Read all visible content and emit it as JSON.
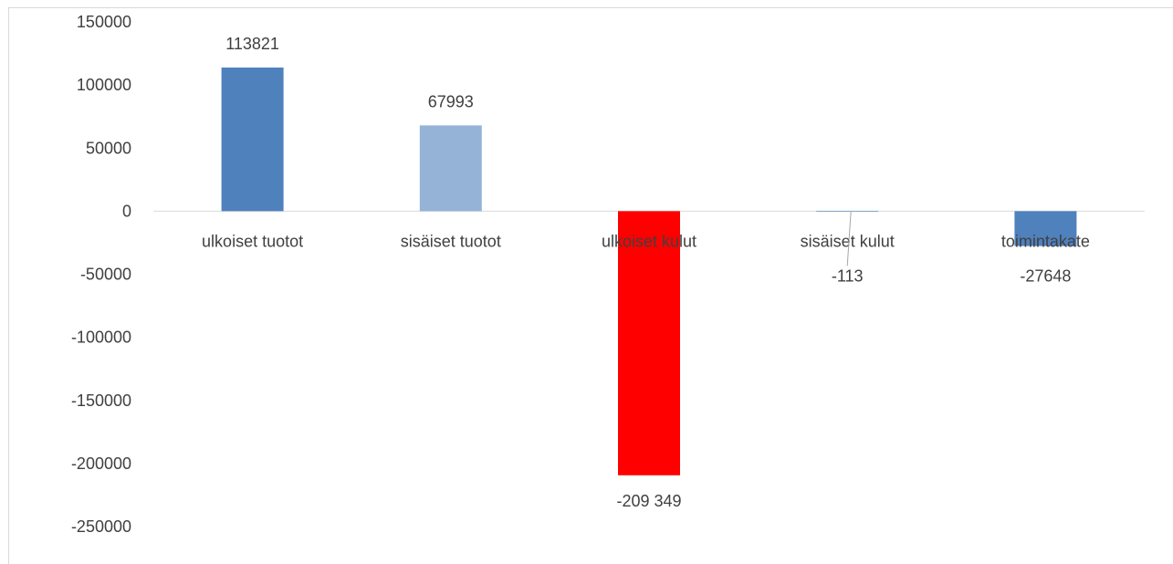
{
  "chart_data": {
    "type": "bar",
    "categories": [
      "ulkoiset tuotot",
      "sisäiset tuotot",
      "ulkoiset kulut",
      "sisäiset kulut",
      "toimintakate"
    ],
    "values": [
      113821,
      67993,
      -209349,
      -113,
      -27648
    ],
    "data_labels": [
      "113821",
      "67993",
      "-209 349",
      "-113",
      "-27648"
    ],
    "bar_colors": [
      "#4f81bd",
      "#95b3d7",
      "#ff0000",
      "#4f81bd",
      "#4f81bd"
    ],
    "ylim": [
      -250000,
      150000
    ],
    "yticks": [
      150000,
      100000,
      50000,
      0,
      -50000,
      -100000,
      -150000,
      -200000,
      -250000
    ],
    "ytick_labels": [
      "150000",
      "100000",
      "50000",
      "0",
      "-50000",
      "-100000",
      "-150000",
      "-200000",
      "-250000"
    ],
    "title": "",
    "xlabel": "",
    "ylabel": "",
    "grid": false,
    "legend": "none"
  }
}
